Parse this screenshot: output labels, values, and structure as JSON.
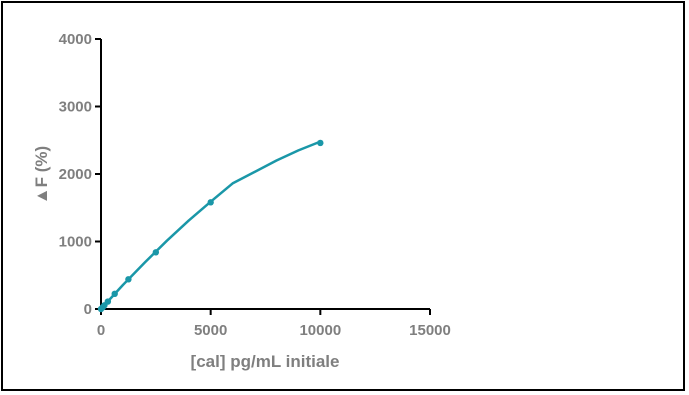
{
  "chart_data": {
    "type": "scatter",
    "title": "",
    "xlabel": "[cal] pg/mL initiale",
    "ylabel": "▲F (%)",
    "xlim": [
      0,
      15000
    ],
    "ylim": [
      0,
      4000
    ],
    "x_ticks": [
      0,
      5000,
      10000,
      15000
    ],
    "y_ticks": [
      0,
      1000,
      2000,
      3000,
      4000
    ],
    "grid": false,
    "colors": {
      "series": "#1a97a8",
      "axis": "#000000",
      "text": "#7f7f7f"
    },
    "series": [
      {
        "x": [
          0,
          78,
          156,
          312,
          625,
          1250,
          2500,
          5000,
          10000
        ],
        "y": [
          0,
          25,
          55,
          110,
          225,
          440,
          840,
          1580,
          2460
        ]
      }
    ],
    "fit_curve": {
      "type": "power",
      "x": [
        0,
        500,
        1000,
        2000,
        3000,
        4000,
        5000,
        6000,
        7000,
        8000,
        9000,
        10000
      ],
      "y": [
        0,
        180,
        355,
        690,
        1010,
        1310,
        1590,
        1860,
        2030,
        2200,
        2350,
        2480
      ]
    }
  }
}
